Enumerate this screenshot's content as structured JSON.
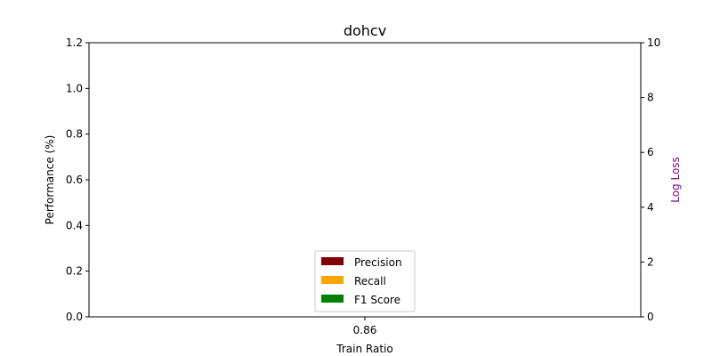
{
  "chart_data": {
    "type": "bar",
    "title": "dohcv",
    "xlabel": "Train Ratio",
    "ylabel": "Performance (%)",
    "y2label": "Log Loss",
    "y2label_color": "#800080",
    "categories": [
      "0.86"
    ],
    "ylim": [
      0,
      1.2
    ],
    "yticks": [
      "0.0",
      "0.2",
      "0.4",
      "0.6",
      "0.8",
      "1.0",
      "1.2"
    ],
    "y2lim": [
      0,
      10
    ],
    "y2ticks": [
      "0",
      "2",
      "4",
      "6",
      "8",
      "10"
    ],
    "grid": false,
    "legend_position": "bottom-center",
    "series": [
      {
        "name": "Precision",
        "color": "#800000",
        "values": [
          null
        ]
      },
      {
        "name": "Recall",
        "color": "#FFA500",
        "values": [
          null
        ]
      },
      {
        "name": "F1 Score",
        "color": "#008000",
        "values": [
          null
        ]
      }
    ]
  }
}
